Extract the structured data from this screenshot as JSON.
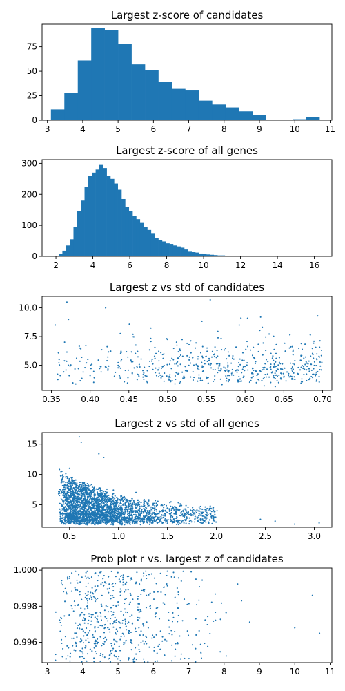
{
  "chart_data": [
    {
      "type": "bar",
      "title": "Largest z-score of candidates",
      "xlabel": "",
      "ylabel": "",
      "xlim": [
        2.85,
        11.05
      ],
      "ylim": [
        0,
        98
      ],
      "xticks": [
        3,
        4,
        5,
        6,
        7,
        8,
        9,
        10,
        11
      ],
      "yticks": [
        0,
        25,
        50,
        75
      ],
      "bin_start": 3.1,
      "bin_width": 0.38,
      "values": [
        11,
        28,
        61,
        94,
        92,
        78,
        57,
        51,
        39,
        32,
        31,
        20,
        16,
        13,
        9,
        5,
        0,
        0,
        1,
        3
      ],
      "grid": false
    },
    {
      "type": "bar",
      "title": "Largest z-score of all genes",
      "xlabel": "",
      "ylabel": "",
      "xlim": [
        1.25,
        16.95
      ],
      "ylim": [
        0,
        312
      ],
      "xticks": [
        2,
        4,
        6,
        8,
        10,
        12,
        14,
        16
      ],
      "yticks": [
        0,
        100,
        200,
        300
      ],
      "bin_start": 1.95,
      "bin_width": 0.2,
      "values": [
        2,
        8,
        18,
        35,
        55,
        95,
        145,
        180,
        225,
        260,
        270,
        280,
        295,
        285,
        260,
        250,
        235,
        215,
        185,
        160,
        145,
        130,
        120,
        110,
        95,
        85,
        75,
        60,
        52,
        48,
        42,
        40,
        35,
        32,
        28,
        22,
        17,
        14,
        12,
        9,
        7,
        6,
        5,
        4,
        3,
        3,
        2,
        2,
        2,
        1,
        1,
        1,
        0,
        1,
        0,
        0,
        0,
        0,
        0,
        1
      ],
      "grid": false
    },
    {
      "type": "scatter",
      "title": "Largest z vs std of candidates",
      "xlabel": "",
      "ylabel": "",
      "xlim": [
        0.338,
        0.712
      ],
      "ylim": [
        2.8,
        11.0
      ],
      "xticks": [
        0.35,
        0.4,
        0.45,
        0.5,
        0.55,
        0.6,
        0.65,
        0.7
      ],
      "xtick_labels": [
        "0.35",
        "0.40",
        "0.45",
        "0.50",
        "0.55",
        "0.60",
        "0.65",
        "0.70"
      ],
      "yticks": [
        5.0,
        7.5,
        10.0
      ],
      "ytick_labels": [
        "5.0",
        "7.5",
        "10.0"
      ],
      "n_points": 600,
      "x_range": [
        0.355,
        0.7
      ],
      "outliers": [
        [
          0.37,
          10.5
        ],
        [
          0.372,
          9.0
        ],
        [
          0.355,
          8.5
        ],
        [
          0.42,
          10.0
        ],
        [
          0.555,
          10.7
        ],
        [
          0.62,
          9.2
        ],
        [
          0.36,
          5.5
        ],
        [
          0.4,
          4.1
        ]
      ],
      "grid": false
    },
    {
      "type": "scatter",
      "title": "Largest z vs std of all genes",
      "xlabel": "",
      "ylabel": "",
      "xlim": [
        0.22,
        3.18
      ],
      "ylim": [
        1.3,
        16.9
      ],
      "xticks": [
        0.5,
        1.0,
        1.5,
        2.0,
        2.5,
        3.0
      ],
      "xtick_labels": [
        "0.5",
        "1.0",
        "1.5",
        "2.0",
        "2.5",
        "3.0"
      ],
      "yticks": [
        5,
        10,
        15
      ],
      "ytick_labels": [
        "5",
        "10",
        "15"
      ],
      "n_points": 3000,
      "x_range": [
        0.35,
        3.05
      ],
      "outliers": [
        [
          0.6,
          16.2
        ],
        [
          0.62,
          15.3
        ],
        [
          0.8,
          13.4
        ],
        [
          0.85,
          12.8
        ],
        [
          0.5,
          11.0
        ],
        [
          2.6,
          2.3
        ],
        [
          2.8,
          1.8
        ],
        [
          3.05,
          2.0
        ],
        [
          2.45,
          2.6
        ]
      ],
      "grid": false
    },
    {
      "type": "scatter",
      "title": "Prob plot r vs. largest z of candidates",
      "xlabel": "",
      "ylabel": "",
      "xlim": [
        2.85,
        11.05
      ],
      "ylim": [
        0.99487,
        1.00012
      ],
      "xticks": [
        3,
        4,
        5,
        6,
        7,
        8,
        9,
        10,
        11
      ],
      "yticks": [
        0.996,
        0.998,
        1.0
      ],
      "ytick_labels": [
        "0.996",
        "0.998",
        "1.000"
      ],
      "n_points": 600,
      "x_range": [
        3.1,
        10.7
      ],
      "y_range": [
        0.9949,
        0.99995
      ],
      "outliers": [
        [
          10.0,
          0.9968
        ],
        [
          10.5,
          0.9986
        ],
        [
          10.7,
          0.9965
        ]
      ],
      "grid": false
    }
  ],
  "colors": {
    "bars": "#1f77b4",
    "points": "#1f77b4",
    "axes": "#000000"
  }
}
